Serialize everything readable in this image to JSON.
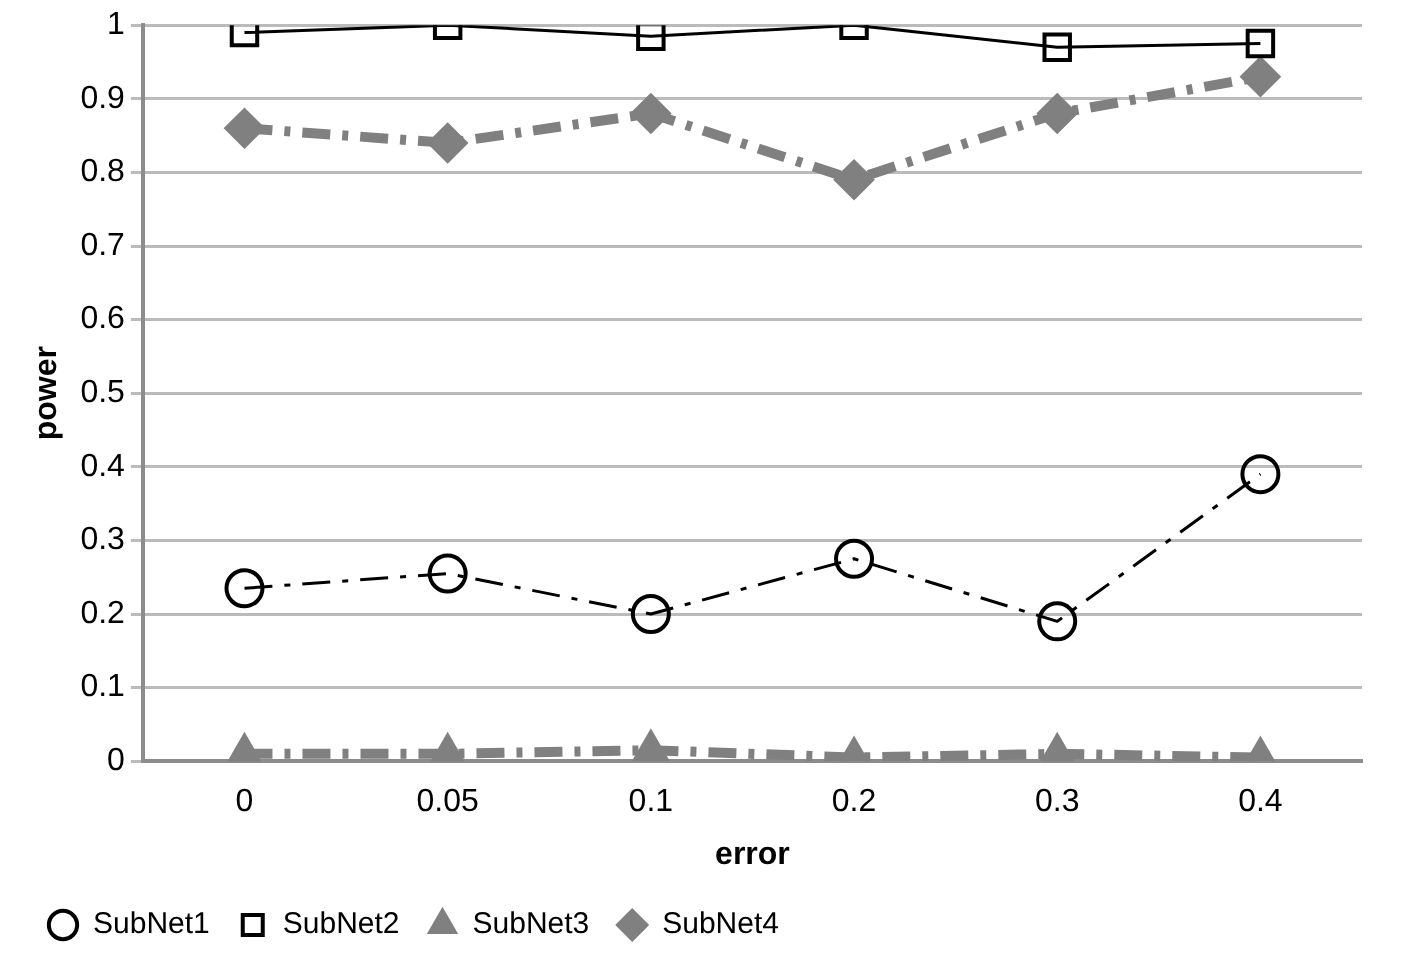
{
  "chart_data": {
    "type": "line",
    "xlabel": "error",
    "ylabel": "power",
    "categories": [
      "0",
      "0.05",
      "0.1",
      "0.2",
      "0.3",
      "0.4"
    ],
    "ylim": [
      0,
      1
    ],
    "yticks": [
      0,
      0.1,
      0.2,
      0.3,
      0.4,
      0.5,
      0.6,
      0.7,
      0.8,
      0.9,
      1
    ],
    "grid": "y",
    "legend": "bottom",
    "series": [
      {
        "name": "SubNet1",
        "color": "#000000",
        "marker": "circle",
        "line_style": "dashed",
        "values": [
          0.235,
          0.255,
          0.2,
          0.275,
          0.19,
          0.39
        ]
      },
      {
        "name": "SubNet2",
        "color": "#000000",
        "marker": "square",
        "line_style": "solid",
        "values": [
          0.99,
          1.0,
          0.985,
          1.0,
          0.97,
          0.975
        ]
      },
      {
        "name": "SubNet3",
        "color": "#808080",
        "marker": "triangle",
        "line_style": "dashed",
        "values": [
          0.01,
          0.01,
          0.015,
          0.005,
          0.01,
          0.005
        ]
      },
      {
        "name": "SubNet4",
        "color": "#808080",
        "marker": "diamond",
        "line_style": "dashed",
        "values": [
          0.86,
          0.84,
          0.88,
          0.79,
          0.88,
          0.93
        ]
      }
    ]
  }
}
